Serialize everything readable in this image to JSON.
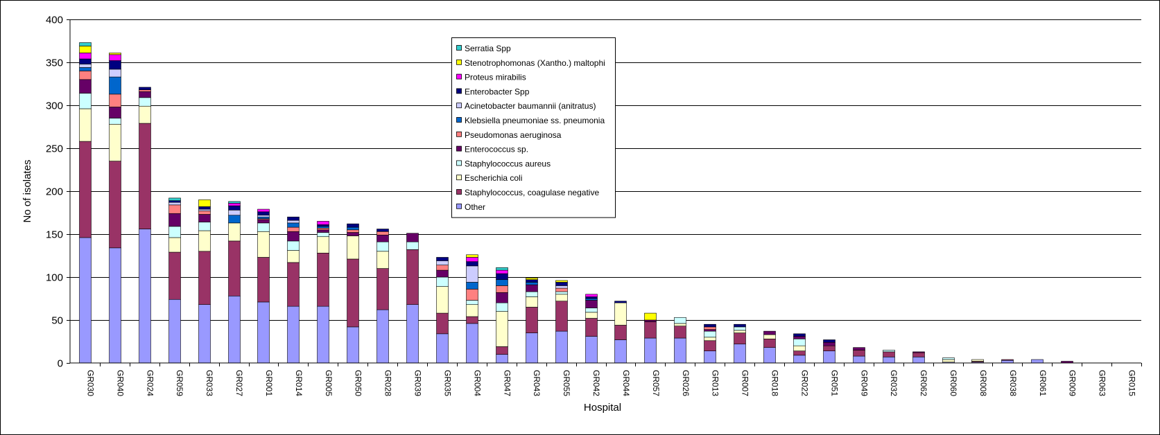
{
  "chart_data": {
    "type": "bar",
    "stacked": true,
    "xlabel": "Hospital",
    "ylabel": "No of isolates",
    "ylim": [
      0,
      400
    ],
    "yticks": [
      0,
      50,
      100,
      150,
      200,
      250,
      300,
      350,
      400
    ],
    "grid": true,
    "legend_position": "top-center",
    "categories": [
      "GR030",
      "GR040",
      "GR024",
      "GR059",
      "GR033",
      "GR027",
      "GR001",
      "GR014",
      "GR005",
      "GR050",
      "GR028",
      "GR039",
      "GR035",
      "GR004",
      "GR047",
      "GR043",
      "GR055",
      "GR042",
      "GR044",
      "GR057",
      "GR026",
      "GR013",
      "GR007",
      "GR018",
      "GR022",
      "GR051",
      "GR049",
      "GR032",
      "GR062",
      "GR060",
      "GR008",
      "GR038",
      "GR061",
      "GR009",
      "GR063",
      "GR015"
    ],
    "series": [
      {
        "name": "Other",
        "color": "#9999ff",
        "values": [
          146,
          134,
          156,
          74,
          68,
          78,
          71,
          66,
          66,
          42,
          62,
          68,
          34,
          46,
          10,
          35,
          37,
          31,
          27,
          29,
          29,
          14,
          22,
          18,
          9,
          14,
          8,
          7,
          7,
          1,
          1,
          3,
          4,
          0,
          0,
          0
        ]
      },
      {
        "name": "Staphylococcus, coagulase negative",
        "color": "#993366",
        "values": [
          112,
          101,
          123,
          55,
          62,
          64,
          52,
          51,
          62,
          79,
          48,
          64,
          24,
          8,
          9,
          30,
          35,
          21,
          17,
          19,
          14,
          12,
          13,
          10,
          5,
          6,
          7,
          6,
          5,
          0,
          1,
          1,
          0,
          0,
          0,
          0
        ]
      },
      {
        "name": "Escherichia coli",
        "color": "#ffffcc",
        "values": [
          38,
          43,
          20,
          17,
          24,
          21,
          30,
          14,
          19,
          27,
          20,
          0,
          31,
          14,
          41,
          12,
          8,
          7,
          26,
          0,
          3,
          4,
          3,
          5,
          6,
          0,
          0,
          0,
          0,
          3,
          2,
          0,
          0,
          0,
          0,
          0
        ]
      },
      {
        "name": "Staphylococcus aureus",
        "color": "#ccffff",
        "values": [
          18,
          7,
          10,
          13,
          10,
          0,
          10,
          11,
          5,
          0,
          11,
          9,
          11,
          5,
          10,
          6,
          3,
          5,
          0,
          0,
          7,
          7,
          4,
          0,
          8,
          0,
          0,
          2,
          0,
          2,
          0,
          0,
          0,
          0,
          0,
          0
        ]
      },
      {
        "name": "Enterococcus sp.",
        "color": "#660066",
        "values": [
          16,
          13,
          7,
          15,
          9,
          0,
          4,
          11,
          3,
          4,
          8,
          10,
          8,
          0,
          12,
          8,
          0,
          9,
          0,
          2,
          0,
          2,
          0,
          4,
          3,
          4,
          3,
          0,
          1,
          0,
          0,
          0,
          0,
          2,
          0,
          0
        ]
      },
      {
        "name": "Pseudomonas aeruginosa",
        "color": "#ff8080",
        "values": [
          10,
          15,
          2,
          10,
          4,
          0,
          1,
          5,
          2,
          3,
          4,
          0,
          6,
          13,
          8,
          0,
          4,
          0,
          0,
          0,
          0,
          3,
          0,
          0,
          0,
          0,
          0,
          0,
          0,
          0,
          0,
          0,
          0,
          0,
          0,
          0
        ]
      },
      {
        "name": "Klebsiella pneumoniae ss. pneumonia",
        "color": "#0066cc",
        "values": [
          4,
          20,
          0,
          0,
          0,
          9,
          2,
          5,
          2,
          3,
          0,
          0,
          0,
          8,
          7,
          3,
          0,
          2,
          0,
          0,
          0,
          0,
          0,
          0,
          0,
          0,
          0,
          0,
          0,
          0,
          0,
          0,
          0,
          0,
          0,
          0
        ]
      },
      {
        "name": "Acinetobacter baumannii (anitratus)",
        "color": "#ccccff",
        "values": [
          4,
          9,
          0,
          3,
          2,
          6,
          2,
          3,
          0,
          0,
          0,
          0,
          5,
          19,
          0,
          0,
          3,
          0,
          0,
          0,
          0,
          0,
          0,
          0,
          0,
          0,
          0,
          0,
          0,
          0,
          0,
          0,
          0,
          0,
          0,
          0
        ]
      },
      {
        "name": "Enterobacter Spp",
        "color": "#000080",
        "values": [
          6,
          10,
          3,
          2,
          3,
          5,
          4,
          4,
          2,
          4,
          3,
          0,
          4,
          5,
          7,
          3,
          4,
          2,
          2,
          0,
          0,
          3,
          3,
          0,
          3,
          3,
          0,
          0,
          0,
          0,
          0,
          0,
          0,
          0,
          0,
          0
        ]
      },
      {
        "name": "Proteus mirabilis",
        "color": "#ff00ff",
        "values": [
          7,
          7,
          0,
          0,
          0,
          3,
          3,
          0,
          4,
          0,
          0,
          0,
          0,
          5,
          4,
          0,
          0,
          3,
          0,
          0,
          0,
          0,
          0,
          0,
          0,
          0,
          0,
          0,
          0,
          0,
          0,
          0,
          0,
          0,
          0,
          0
        ]
      },
      {
        "name": "Stenotrophomonas (Xantho.) maltophi",
        "color": "#ffff00",
        "values": [
          8,
          2,
          0,
          0,
          8,
          0,
          0,
          0,
          0,
          0,
          0,
          0,
          0,
          3,
          0,
          2,
          2,
          0,
          0,
          8,
          0,
          0,
          0,
          0,
          0,
          0,
          0,
          0,
          0,
          0,
          0,
          0,
          0,
          0,
          0,
          0
        ]
      },
      {
        "name": "Serratia Spp",
        "color": "#33cccc",
        "values": [
          4,
          0,
          0,
          3,
          0,
          2,
          0,
          0,
          0,
          0,
          0,
          0,
          0,
          0,
          3,
          0,
          0,
          0,
          0,
          0,
          0,
          0,
          0,
          0,
          0,
          0,
          0,
          0,
          0,
          0,
          0,
          0,
          0,
          0,
          0,
          0
        ]
      }
    ]
  }
}
